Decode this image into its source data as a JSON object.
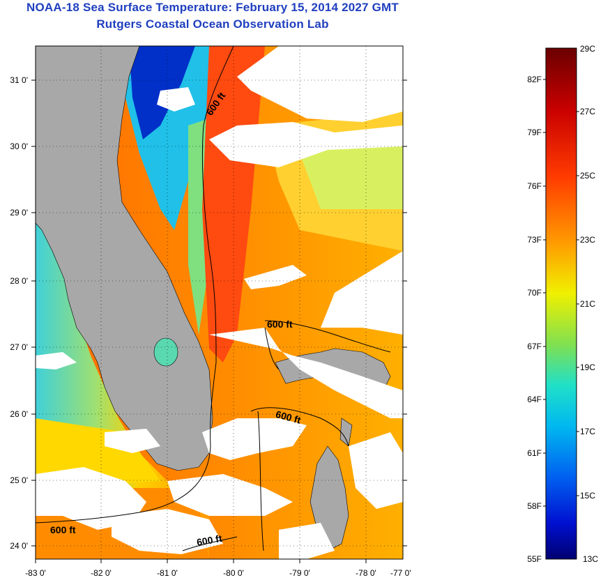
{
  "title": {
    "line1": "NOAA-18 Sea Surface Temperature:  February 15, 2014 2027 GMT",
    "line2": "Rutgers Coastal Ocean Observation Lab"
  },
  "axes": {
    "lon_labels": [
      "-83 0'",
      "-82 0'",
      "-81 0'",
      "-80 0'",
      "-79 0'",
      "-78 0'",
      "-77 0'"
    ],
    "lat_labels": [
      "31 0'",
      "30 0'",
      "29 0'",
      "28 0'",
      "27 0'",
      "26 0'",
      "25 0'",
      "24 0'"
    ]
  },
  "contours": {
    "label": "600 ft"
  },
  "colorbar": {
    "celsius": [
      "29C",
      "27C",
      "25C",
      "23C",
      "21C",
      "19C",
      "17C",
      "15C",
      "13C"
    ],
    "fahrenheit": [
      "82F",
      "79F",
      "76F",
      "73F",
      "70F",
      "67F",
      "64F",
      "61F",
      "58F",
      "55F"
    ],
    "colors": [
      "#7a0000",
      "#c00000",
      "#ff2a00",
      "#ff7a00",
      "#ffcc00",
      "#e8f000",
      "#8fe040",
      "#30e0b0",
      "#00c8f0",
      "#0080f0",
      "#0030d8",
      "#000090"
    ]
  },
  "map_colors": {
    "land": "#a8a8a8",
    "cloud": "#ffffff",
    "gulf_stream": "#ff5a10",
    "warm": "#ff8a10",
    "cool_shelf": "#40d8c0",
    "cold_coastal": "#0030c8"
  }
}
